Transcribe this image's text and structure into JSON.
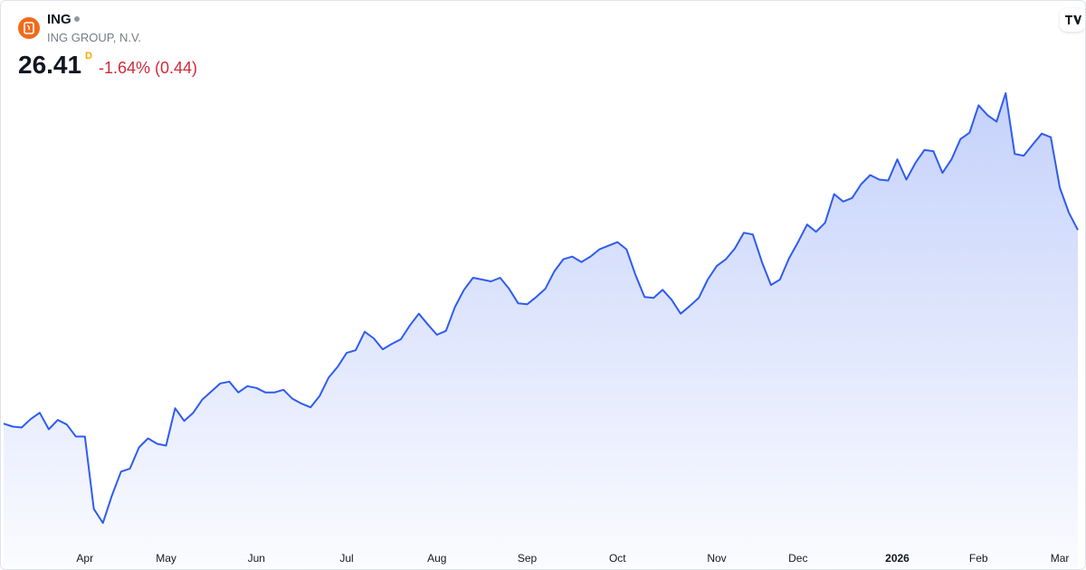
{
  "header": {
    "ticker": "ING",
    "name": "ING GROUP, N.V.",
    "price": "26.41",
    "interval": "D",
    "change": "-1.64% (0.44)"
  },
  "chart_data": {
    "type": "area",
    "color": "#2f5cf0",
    "categories": [
      null,
      null,
      null,
      null,
      null,
      null,
      null,
      null,
      null,
      "Apr",
      null,
      null,
      null,
      null,
      null,
      null,
      null,
      null,
      "May",
      null,
      null,
      null,
      null,
      null,
      null,
      null,
      null,
      null,
      "Jun",
      null,
      null,
      null,
      null,
      null,
      null,
      null,
      null,
      null,
      "Jul",
      null,
      null,
      null,
      null,
      null,
      null,
      null,
      null,
      null,
      "Aug",
      null,
      null,
      null,
      null,
      null,
      null,
      null,
      null,
      null,
      "Sep",
      null,
      null,
      null,
      null,
      null,
      null,
      null,
      null,
      null,
      "Oct",
      null,
      null,
      null,
      null,
      null,
      null,
      null,
      null,
      null,
      null,
      "Nov",
      null,
      null,
      null,
      null,
      null,
      null,
      null,
      null,
      "Dec",
      null,
      null,
      null,
      null,
      null,
      null,
      null,
      null,
      null,
      null,
      "2026",
      null,
      null,
      null,
      null,
      null,
      null,
      null,
      null,
      "Feb",
      null,
      null,
      null,
      null,
      null,
      null,
      null,
      null,
      "Mar",
      null,
      null
    ],
    "values": [
      20.0,
      19.9,
      19.87,
      20.15,
      20.36,
      19.81,
      20.12,
      19.97,
      19.57,
      19.57,
      17.17,
      16.71,
      17.62,
      18.41,
      18.51,
      19.21,
      19.51,
      19.33,
      19.27,
      20.51,
      20.09,
      20.36,
      20.79,
      21.06,
      21.33,
      21.39,
      21.03,
      21.24,
      21.18,
      21.03,
      21.03,
      21.12,
      20.82,
      20.66,
      20.54,
      20.91,
      21.52,
      21.88,
      22.34,
      22.43,
      23.04,
      22.82,
      22.46,
      22.64,
      22.79,
      23.25,
      23.64,
      23.28,
      22.94,
      23.07,
      23.86,
      24.43,
      24.83,
      24.77,
      24.71,
      24.83,
      24.46,
      23.98,
      23.95,
      24.19,
      24.46,
      25.04,
      25.44,
      25.53,
      25.35,
      25.53,
      25.77,
      25.89,
      26.01,
      25.77,
      24.92,
      24.19,
      24.16,
      24.43,
      24.1,
      23.64,
      23.89,
      24.16,
      24.77,
      25.22,
      25.44,
      25.8,
      26.32,
      26.26,
      25.35,
      24.59,
      24.77,
      25.47,
      26.01,
      26.59,
      26.35,
      26.65,
      27.6,
      27.35,
      27.47,
      27.93,
      28.23,
      28.08,
      28.05,
      28.75,
      28.08,
      28.63,
      29.06,
      29.02,
      28.3,
      28.75,
      29.42,
      29.63,
      30.54,
      30.21,
      30.0,
      30.94,
      28.93,
      28.87,
      29.24,
      29.6,
      29.48,
      27.81,
      26.99,
      26.41
    ],
    "bold_categories": [
      "2026"
    ]
  }
}
